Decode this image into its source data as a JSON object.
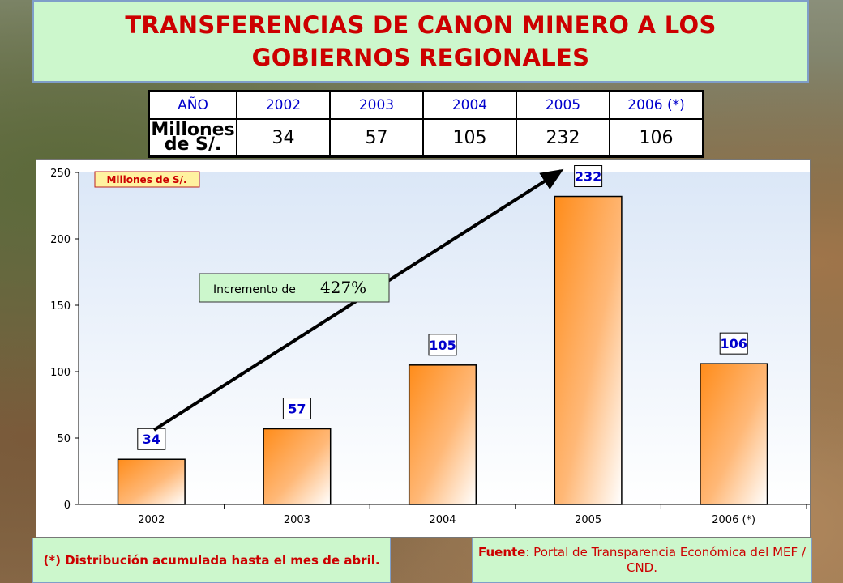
{
  "title": {
    "line1": "TRANSFERENCIAS DE CANON MINERO A LOS",
    "line2": "GOBIERNOS REGIONALES"
  },
  "table": {
    "header_label": "AÑO",
    "row_label_1": "Millones",
    "row_label_2": "de S/.",
    "years": [
      "2002",
      "2003",
      "2004",
      "2005",
      "2006 (*)"
    ],
    "values": [
      "34",
      "57",
      "105",
      "232",
      "106"
    ]
  },
  "chart_data": {
    "type": "bar",
    "categories": [
      "2002",
      "2003",
      "2004",
      "2005",
      "2006 (*)"
    ],
    "values": [
      34,
      57,
      105,
      232,
      106
    ],
    "data_labels": [
      "34",
      "57",
      "105",
      "232",
      "106"
    ],
    "ylim": [
      0,
      250
    ],
    "yticks": [
      0,
      50,
      100,
      150,
      200,
      250
    ],
    "units_label": "Millones de S/.",
    "annotation": {
      "text": "Incremento de",
      "value": "427%"
    },
    "grid": false,
    "colors": {
      "bar_dark": "#ff8c1a",
      "bar_light": "#ffffff",
      "plot_top": "#dbe7f7",
      "plot_bottom": "#ffffff",
      "label_text": "#0000cc",
      "units_box": "#fff2a0",
      "annotation_box": "#ccf7cc"
    }
  },
  "footer": {
    "left_note": "(*) Distribución acumulada hasta el mes de abril.",
    "source_label": "Fuente",
    "source_text": ": Portal de Transparencia Económica del MEF / CND."
  }
}
